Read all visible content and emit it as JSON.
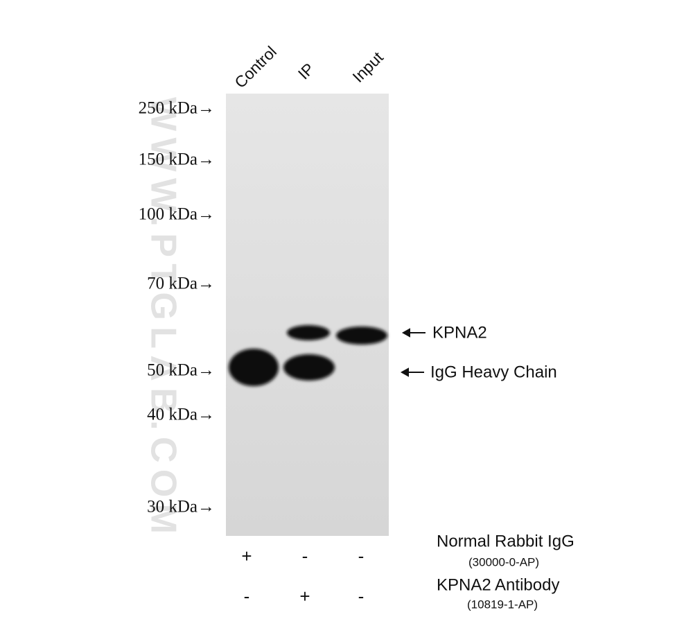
{
  "lanes": [
    "Control",
    "IP",
    "Input"
  ],
  "markers": [
    "250 kDa→",
    "150 kDa→",
    "100 kDa→",
    "70 kDa→",
    "50 kDa→",
    "40 kDa→",
    "30 kDa→"
  ],
  "bands": [
    "KPNA2",
    "IgG Heavy Chain"
  ],
  "treatments": [
    {
      "name": "Normal Rabbit IgG",
      "catalog": "(30000-0-AP)",
      "signs": [
        "+",
        "-",
        "-"
      ]
    },
    {
      "name": "KPNA2 Antibody",
      "catalog": "(10819-1-AP)",
      "signs": [
        "-",
        "+",
        "-"
      ]
    }
  ],
  "watermark": "WWW.PTGLAB.COM"
}
